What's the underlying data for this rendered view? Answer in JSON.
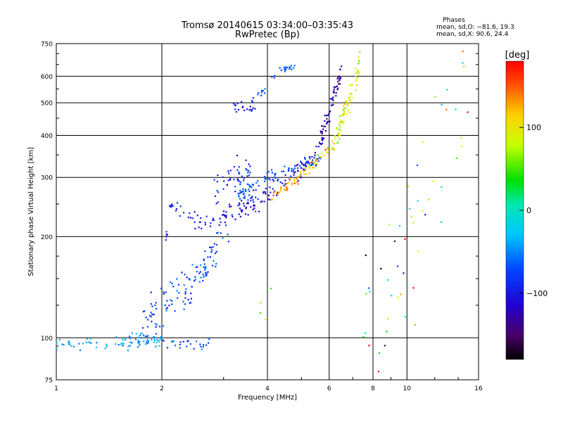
{
  "chart_data": {
    "type": "scatter",
    "title": "Tromsø 20140615 03:34:00–03:35:43",
    "subtitle": "RwPretec (Bp)",
    "xlabel": "Frequency [MHz]",
    "ylabel": "Stationary phase Virtual Height [km]",
    "x_scale": "log",
    "y_scale": "log",
    "xlim": [
      1,
      16
    ],
    "ylim": [
      75,
      750
    ],
    "x_ticks": [
      1,
      2,
      4,
      6,
      8,
      10,
      16
    ],
    "x_tick_labels": [
      "1",
      "2",
      "4",
      "6",
      "8",
      "10",
      "16"
    ],
    "y_ticks": [
      75,
      100,
      200,
      300,
      400,
      500,
      600,
      750
    ],
    "y_tick_labels": [
      "75",
      "100",
      "200",
      "300",
      "400",
      "500",
      "600",
      "750"
    ],
    "grid": true,
    "stats": {
      "heading": "Phases",
      "line_o": "mean, sd,O: −81.6, 19.3",
      "line_x": "mean, sd,X:  90.6, 24.4"
    },
    "colorbar": {
      "label": "[deg]",
      "range": [
        -180,
        180
      ],
      "ticks": [
        100,
        0,
        -100
      ],
      "tick_labels": [
        "100",
        "0",
        "−100"
      ]
    },
    "series": [
      {
        "segments": [
          {
            "x0": 1.0,
            "x1": 2.0,
            "y0": 95,
            "y1": 98,
            "n": 70,
            "ph": -40,
            "phsd": 12,
            "ysd": 0.02
          },
          {
            "x0": 1.6,
            "x1": 2.05,
            "y0": 98,
            "y1": 108,
            "n": 25,
            "ph": -55,
            "phsd": 12,
            "ysd": 0.03
          },
          {
            "x0": 2.0,
            "x1": 2.75,
            "y0": 97,
            "y1": 95,
            "n": 25,
            "ph": -70,
            "phsd": 15,
            "ysd": 0.02
          },
          {
            "x0": 1.75,
            "x1": 2.9,
            "y0": 110,
            "y1": 180,
            "n": 70,
            "ph": -75,
            "phsd": 15,
            "ysd": 0.06
          },
          {
            "x0": 2.3,
            "x1": 3.1,
            "y0": 130,
            "y1": 220,
            "n": 45,
            "ph": -85,
            "phsd": 15,
            "ysd": 0.07
          },
          {
            "x0": 2.05,
            "x1": 2.1,
            "y0": 200,
            "y1": 208,
            "n": 6,
            "ph": -100,
            "phsd": 8,
            "ysd": 0.02
          },
          {
            "x0": 2.1,
            "x1": 2.6,
            "y0": 245,
            "y1": 218,
            "n": 25,
            "ph": -95,
            "phsd": 8,
            "ysd": 0.03
          },
          {
            "x0": 2.6,
            "x1": 2.85,
            "y0": 218,
            "y1": 220,
            "n": 8,
            "ph": -95,
            "phsd": 8,
            "ysd": 0.02
          },
          {
            "x0": 2.8,
            "x1": 3.6,
            "y0": 260,
            "y1": 320,
            "n": 40,
            "ph": -90,
            "phsd": 15,
            "ysd": 0.06
          },
          {
            "x0": 3.1,
            "x1": 3.8,
            "y0": 320,
            "y1": 250,
            "n": 25,
            "ph": -85,
            "phsd": 15,
            "ysd": 0.05
          },
          {
            "x0": 2.9,
            "x1": 4.0,
            "y0": 225,
            "y1": 265,
            "n": 55,
            "ph": -110,
            "phsd": 12,
            "ysd": 0.03
          },
          {
            "x0": 4.0,
            "x1": 5.5,
            "y0": 265,
            "y1": 350,
            "n": 50,
            "ph": -115,
            "phsd": 12,
            "ysd": 0.03
          },
          {
            "x0": 5.5,
            "x1": 6.5,
            "y0": 350,
            "y1": 620,
            "n": 70,
            "ph": -125,
            "phsd": 12,
            "ysd": 0.04
          },
          {
            "x0": 3.3,
            "x1": 4.0,
            "y0": 265,
            "y1": 300,
            "n": 30,
            "ph": -70,
            "phsd": 12,
            "ysd": 0.02
          },
          {
            "x0": 4.0,
            "x1": 5.7,
            "y0": 300,
            "y1": 345,
            "n": 50,
            "ph": -75,
            "phsd": 10,
            "ysd": 0.02
          },
          {
            "x0": 4.1,
            "x1": 4.9,
            "y0": 262,
            "y1": 300,
            "n": 35,
            "ph": 130,
            "phsd": 20,
            "ysd": 0.02
          },
          {
            "x0": 4.9,
            "x1": 6.2,
            "y0": 300,
            "y1": 380,
            "n": 45,
            "ph": 100,
            "phsd": 18,
            "ysd": 0.02
          },
          {
            "x0": 6.2,
            "x1": 7.35,
            "y0": 380,
            "y1": 650,
            "n": 80,
            "ph": 90,
            "phsd": 18,
            "ysd": 0.04
          },
          {
            "x0": 4.3,
            "x1": 4.8,
            "y0": 628,
            "y1": 640,
            "n": 20,
            "ph": -60,
            "phsd": 10,
            "ysd": 0.01
          },
          {
            "x0": 3.6,
            "x1": 4.2,
            "y0": 500,
            "y1": 600,
            "n": 15,
            "ph": -75,
            "phsd": 10,
            "ysd": 0.02
          },
          {
            "x0": 3.2,
            "x1": 3.7,
            "y0": 485,
            "y1": 480,
            "n": 20,
            "ph": -95,
            "phsd": 10,
            "ysd": 0.02
          },
          {
            "x0": 3.7,
            "x1": 4.3,
            "y0": 120,
            "y1": 130,
            "n": 4,
            "ph": 40,
            "phsd": 60,
            "ysd": 0.1
          },
          {
            "x0": 7.5,
            "x1": 15.0,
            "y0": 80,
            "y1": 640,
            "n": 55,
            "ph": 0,
            "phsd": 110,
            "ysd": 0.3
          }
        ]
      }
    ]
  }
}
